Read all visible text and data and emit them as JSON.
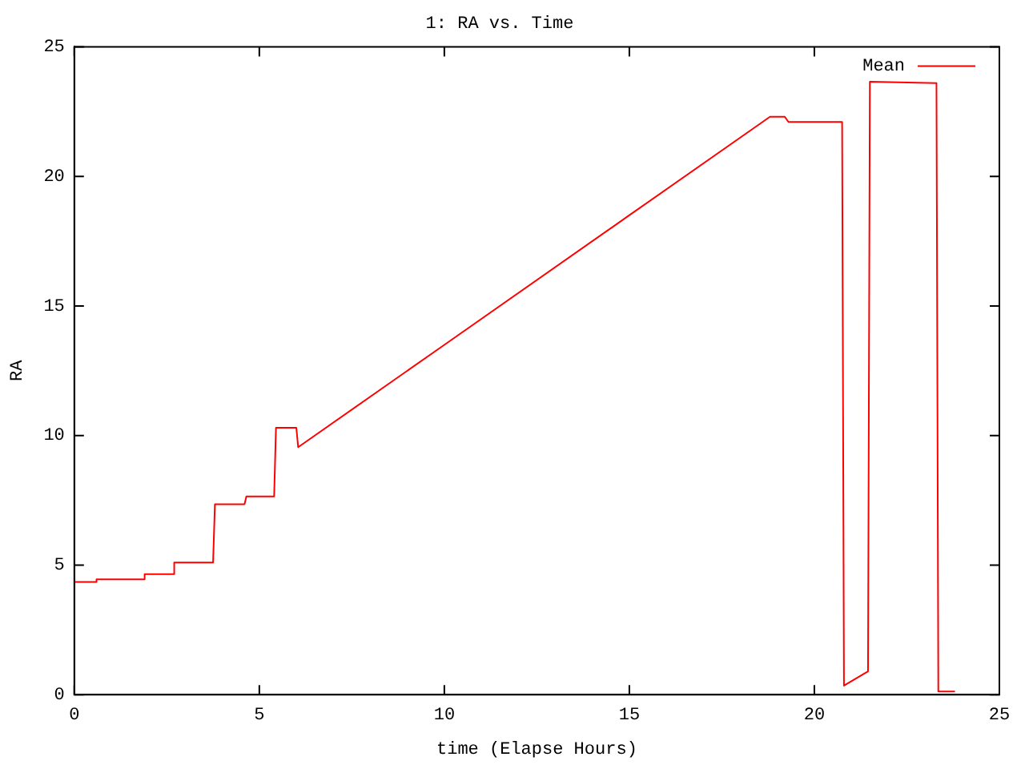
{
  "chart_data": {
    "type": "line",
    "title": "1: RA vs. Time",
    "xlabel": "time (Elapse Hours)",
    "ylabel": "RA",
    "xlim": [
      0,
      25
    ],
    "xticks": [
      0,
      5,
      10,
      15,
      20,
      25
    ],
    "ylim": [
      0,
      25
    ],
    "yticks": [
      0,
      5,
      10,
      15,
      20,
      25
    ],
    "grid": false,
    "legend": "top right",
    "marker": "none",
    "line_style": "solid",
    "series": [
      {
        "name": "Mean",
        "color": "#ff0000",
        "x": [
          0,
          0.6,
          0.6,
          1.9,
          1.9,
          2.7,
          2.7,
          3.75,
          3.8,
          4.6,
          4.65,
          5.4,
          5.45,
          6.0,
          6.05,
          10,
          15,
          18.6,
          18.8,
          19.2,
          19.3,
          20.75,
          20.8,
          21.45,
          21.5,
          23.3,
          23.35,
          23.8
        ],
        "values": [
          4.35,
          4.35,
          4.45,
          4.45,
          4.65,
          4.65,
          5.1,
          5.1,
          7.35,
          7.35,
          7.65,
          7.65,
          10.3,
          10.3,
          9.55,
          13.5,
          18.5,
          22.1,
          22.3,
          22.3,
          22.1,
          22.1,
          0.35,
          0.9,
          23.65,
          23.6,
          0.12,
          0.12
        ]
      }
    ]
  }
}
